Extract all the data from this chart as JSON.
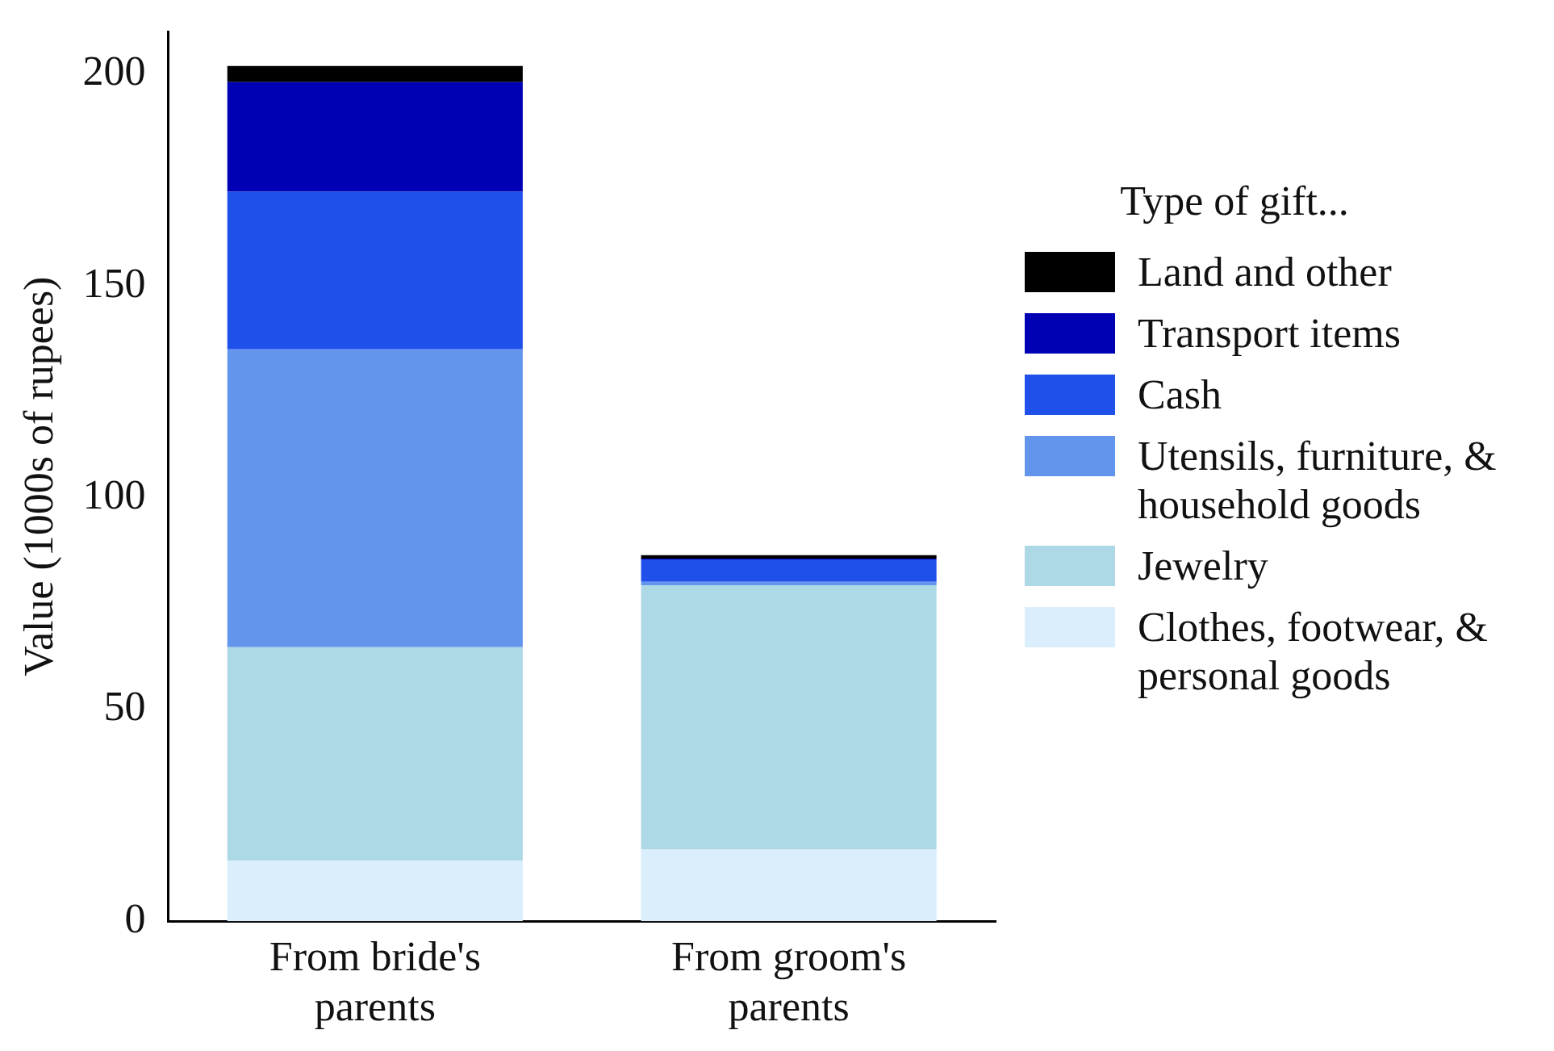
{
  "chart_data": {
    "type": "bar",
    "stacked": true,
    "ylabel": "Value (1000s of rupees)",
    "legend_title": "Type of gift...",
    "legend": "right",
    "grid": false,
    "categories": [
      "From bride's parents",
      "From groom's parents"
    ],
    "ylim": [
      0,
      210
    ],
    "yticks": [
      0,
      50,
      100,
      150,
      200
    ],
    "series": [
      {
        "name": "Clothes, footwear, & personal goods",
        "color": "#dbeefc",
        "values": [
          14.3,
          16.9
        ]
      },
      {
        "name": "Jewelry",
        "color": "#add8e6",
        "values": [
          50.4,
          62.4
        ]
      },
      {
        "name": "Utensils, furniture, & household goods",
        "color": "#6495ed",
        "values": [
          70.3,
          0.8
        ]
      },
      {
        "name": "Cash",
        "color": "#1f51ea",
        "values": [
          37.2,
          5.3
        ]
      },
      {
        "name": "Transport items",
        "color": "#0000b5",
        "values": [
          25.9,
          0.2
        ]
      },
      {
        "name": "Land and other",
        "color": "#000000",
        "values": [
          3.8,
          0.8
        ]
      }
    ]
  }
}
